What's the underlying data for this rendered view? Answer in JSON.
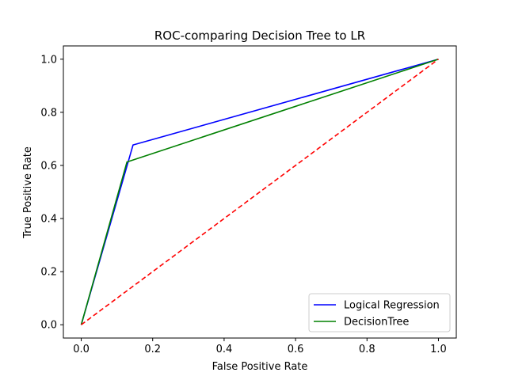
{
  "chart_data": {
    "type": "line",
    "title": "ROC-comparing Decision Tree to LR",
    "xlabel": "False Positive Rate",
    "ylabel": "True Positive Rate",
    "xlim": [
      -0.05,
      1.05
    ],
    "ylim": [
      -0.05,
      1.05
    ],
    "xticks": [
      0.0,
      0.2,
      0.4,
      0.6,
      0.8,
      1.0
    ],
    "yticks": [
      0.0,
      0.2,
      0.4,
      0.6,
      0.8,
      1.0
    ],
    "xtick_labels": [
      "0.0",
      "0.2",
      "0.4",
      "0.6",
      "0.8",
      "1.0"
    ],
    "ytick_labels": [
      "0.0",
      "0.2",
      "0.4",
      "0.6",
      "0.8",
      "1.0"
    ],
    "grid": false,
    "legend_position": "bottom-right",
    "series": [
      {
        "name": "Logical Regression",
        "color": "#0000ff",
        "dash": "solid",
        "x": [
          0.0,
          0.145,
          1.0
        ],
        "y": [
          0.0,
          0.677,
          1.0
        ],
        "in_legend": true
      },
      {
        "name": "DecisionTree",
        "color": "#008000",
        "dash": "solid",
        "x": [
          0.0,
          0.128,
          1.0
        ],
        "y": [
          0.0,
          0.613,
          1.0
        ],
        "in_legend": true
      },
      {
        "color": "#ff0000",
        "dash": "dashed",
        "x": [
          0.0,
          1.0
        ],
        "y": [
          0.0,
          1.0
        ],
        "in_legend": false
      }
    ]
  }
}
